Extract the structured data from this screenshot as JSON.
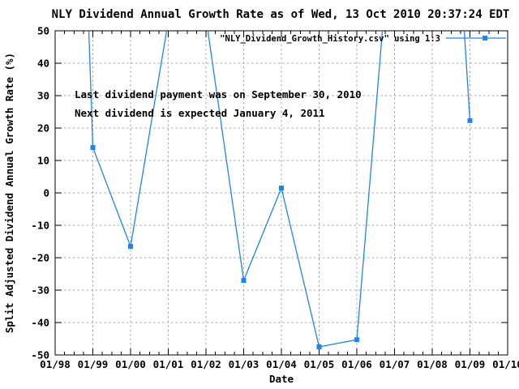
{
  "page": {
    "title": "NLY Dividend Annual Growth Rate as of Wed, 13 Oct 2010 20:37:24 EDT"
  },
  "chart_data": {
    "type": "line",
    "title": "NLY Dividend Annual Growth Rate as of Wed, 13 Oct 2010 20:37:24 EDT",
    "xlabel": "Date",
    "ylabel": "Split Adjusted Dividend Annual Growth Rate (%)",
    "xlim": [
      1998,
      2010
    ],
    "ylim": [
      -50,
      50
    ],
    "y_tick_step": 10,
    "y_tick_labels": [
      "50",
      "40",
      "30",
      "20",
      "10",
      "0",
      "-10",
      "-20",
      "-30",
      "-40",
      "-50"
    ],
    "x_tick_labels": [
      "01/98",
      "01/99",
      "01/00",
      "01/01",
      "01/02",
      "01/03",
      "01/04",
      "01/05",
      "01/06",
      "01/07",
      "01/08",
      "01/09",
      "01/10"
    ],
    "x_minor_ticks_per_interval": 3,
    "grid": true,
    "legend": {
      "label": "\"NLY_Dividend_Growth_History.csv\" using 1:3",
      "position": "top-right-inside"
    },
    "annotations": [
      "Last dividend payment was on September 30, 2010",
      "Next dividend is expected January 4, 2011"
    ],
    "series": [
      {
        "name": "\"NLY_Dividend_Growth_History.csv\" using 1:3",
        "color": "#1c86ee",
        "marker": "filled-square",
        "points": [
          {
            "x": 1998,
            "y": 350,
            "clipped_above_ymax": true
          },
          {
            "x": 1999,
            "y": 14
          },
          {
            "x": 2000,
            "y": -16.5
          },
          {
            "x": 2001,
            "y": 53,
            "clipped_above_ymax": true
          },
          {
            "x": 2002,
            "y": 54,
            "clipped_above_ymax": true
          },
          {
            "x": 2003,
            "y": -27
          },
          {
            "x": 2004,
            "y": 1.5
          },
          {
            "x": 2005,
            "y": -47.5
          },
          {
            "x": 2006,
            "y": -45.3
          },
          {
            "x": 2007,
            "y": 95,
            "clipped_above_ymax": true
          },
          {
            "x": 2008,
            "y": 206,
            "clipped_above_ymax": true
          },
          {
            "x": 2009,
            "y": 22.3
          }
        ]
      }
    ]
  },
  "colors": {
    "background": "#ffffff",
    "line": "#1c86ee",
    "grid": "#a8a8a8",
    "border": "#000000",
    "text": "#000000"
  }
}
